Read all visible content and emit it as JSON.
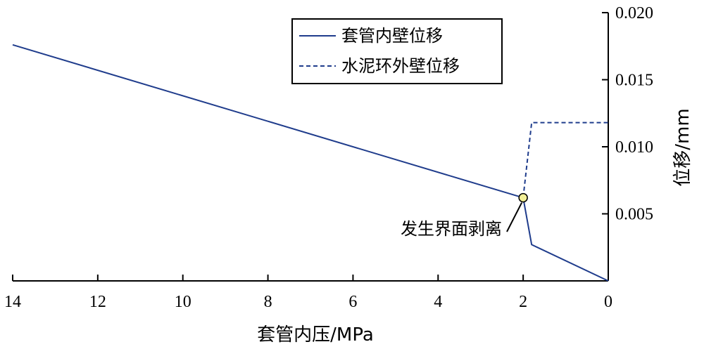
{
  "chart_data": {
    "type": "line",
    "xlabel": "套管内压/MPa",
    "ylabel": "位移/mm",
    "x_axis": {
      "range": [
        14,
        0
      ],
      "ticks": [
        14,
        12,
        10,
        8,
        6,
        4,
        2,
        0
      ],
      "tick_labels": [
        "14",
        "12",
        "10",
        "8",
        "6",
        "4",
        "2",
        "0"
      ],
      "position": "bottom",
      "reversed": true
    },
    "y_axis": {
      "range": [
        0,
        0.02
      ],
      "ticks": [
        0.005,
        0.01,
        0.015,
        0.02
      ],
      "tick_labels": [
        "0.005",
        "0.010",
        "0.015",
        "0.020"
      ],
      "position": "right"
    },
    "grid": false,
    "legend": {
      "placement": "top-right",
      "entries": [
        {
          "label": "套管内壁位移",
          "style": "solid"
        },
        {
          "label": "水泥环外壁位移",
          "style": "dashed"
        }
      ]
    },
    "series": [
      {
        "name": "套管内壁位移",
        "style": "solid",
        "color": "#1f3c8c",
        "x": [
          14,
          2,
          1.8,
          0
        ],
        "y": [
          0.0176,
          0.0062,
          0.0027,
          0.0
        ]
      },
      {
        "name": "水泥环外壁位移",
        "style": "dashed",
        "color": "#1f3c8c",
        "x": [
          2,
          1.8,
          0
        ],
        "y": [
          0.0062,
          0.0118,
          0.0118
        ]
      }
    ],
    "annotations": [
      {
        "text": "发生界面剥离",
        "x": 2,
        "y": 0.0062,
        "marker": "circle",
        "marker_color": "#f2ef96"
      }
    ]
  }
}
